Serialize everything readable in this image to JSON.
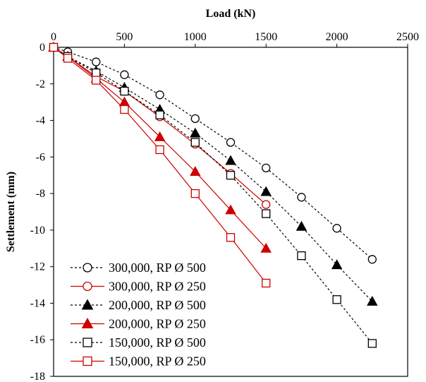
{
  "chart_data": {
    "type": "line",
    "xlabel": "Load (kN)",
    "ylabel": "Settlement (mm)",
    "xlim": [
      0,
      2500
    ],
    "ylim": [
      -18,
      0
    ],
    "x_ticks": [
      0,
      500,
      1000,
      1500,
      2000,
      2500
    ],
    "y_ticks": [
      0,
      -2,
      -4,
      -6,
      -8,
      -10,
      -12,
      -14,
      -16,
      -18
    ],
    "x_axis_position": "top",
    "grid": false,
    "legend_position": "bottom-left",
    "series": [
      {
        "name": "300,000, RP Ø 500",
        "color": "#000000",
        "line_style": "dashed",
        "marker": "open-circle",
        "x": [
          0,
          100,
          300,
          500,
          750,
          1000,
          1250,
          1500,
          1750,
          2000,
          2250
        ],
        "y": [
          0,
          -0.25,
          -0.8,
          -1.5,
          -2.6,
          -3.9,
          -5.2,
          -6.6,
          -8.2,
          -9.9,
          -11.6
        ]
      },
      {
        "name": "300,000, RP Ø 250",
        "color": "#cc0000",
        "line_style": "solid",
        "marker": "open-circle",
        "x": [
          0,
          100,
          300,
          500,
          750,
          1000,
          1250,
          1500
        ],
        "y": [
          0,
          -0.5,
          -1.6,
          -2.4,
          -3.8,
          -5.3,
          -6.9,
          -8.6
        ]
      },
      {
        "name": "200,000, RP Ø 500",
        "color": "#000000",
        "line_style": "dashed",
        "marker": "filled-triangle",
        "x": [
          0,
          100,
          300,
          500,
          750,
          1000,
          1250,
          1500,
          1750,
          2000,
          2250
        ],
        "y": [
          0,
          -0.5,
          -1.3,
          -2.2,
          -3.4,
          -4.7,
          -6.2,
          -7.9,
          -9.8,
          -11.9,
          -13.9
        ]
      },
      {
        "name": "200,000, RP Ø 250",
        "color": "#cc0000",
        "line_style": "solid",
        "marker": "filled-triangle",
        "x": [
          0,
          100,
          300,
          500,
          750,
          1000,
          1250,
          1500
        ],
        "y": [
          0,
          -0.5,
          -1.7,
          -3.0,
          -4.9,
          -6.8,
          -8.9,
          -11.0
        ]
      },
      {
        "name": "150,000, RP Ø 500",
        "color": "#000000",
        "line_style": "dashed",
        "marker": "open-square",
        "x": [
          0,
          100,
          300,
          500,
          750,
          1000,
          1250,
          1500,
          1750,
          2000,
          2250
        ],
        "y": [
          0,
          -0.5,
          -1.4,
          -2.4,
          -3.7,
          -5.2,
          -7.0,
          -9.1,
          -11.4,
          -13.8,
          -16.2
        ]
      },
      {
        "name": "150,000, RP Ø 250",
        "color": "#cc0000",
        "line_style": "solid",
        "marker": "open-square",
        "x": [
          0,
          100,
          300,
          500,
          750,
          1000,
          1250,
          1500
        ],
        "y": [
          0,
          -0.6,
          -1.8,
          -3.4,
          -5.6,
          -8.0,
          -10.4,
          -12.9
        ]
      }
    ]
  }
}
